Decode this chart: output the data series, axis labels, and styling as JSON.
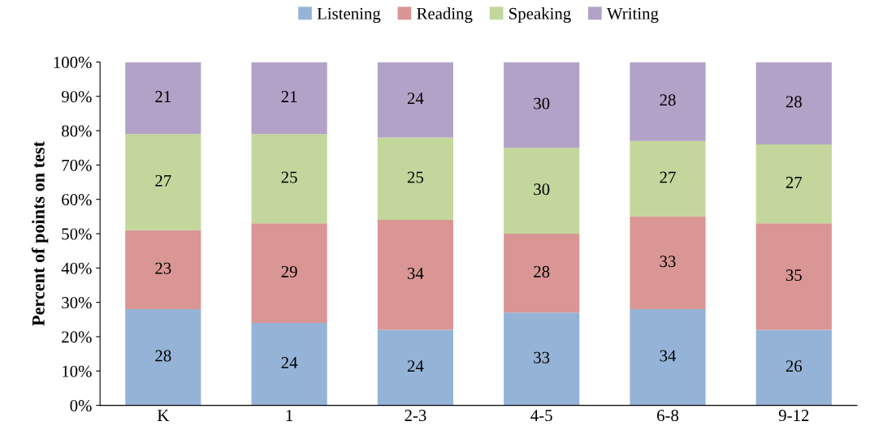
{
  "chart_data": {
    "type": "bar",
    "stacked": true,
    "ylabel": "Percent of points on test",
    "categories": [
      "K",
      "1",
      "2-3",
      "4-5",
      "6-8",
      "9-12"
    ],
    "series": [
      {
        "name": "Listening",
        "color": "#95b3d7",
        "values": [
          28,
          24,
          22,
          27,
          28,
          22
        ]
      },
      {
        "name": "Reading",
        "color": "#d99694",
        "values": [
          23,
          29,
          32,
          23,
          27,
          31
        ]
      },
      {
        "name": "Speaking",
        "color": "#c3d69b",
        "values": [
          28,
          26,
          24,
          25,
          22,
          23
        ]
      },
      {
        "name": "Writing",
        "color": "#b3a2c7",
        "values": [
          21,
          21,
          22,
          25,
          23,
          24
        ]
      }
    ],
    "annotations": [
      "28",
      "23",
      "27",
      "21",
      "24",
      "29",
      "25",
      "21",
      "24",
      "34",
      "25",
      "24",
      "33",
      "28",
      "30",
      "30",
      "34",
      "33",
      "27",
      "28",
      "26",
      "35",
      "27",
      "28"
    ],
    "ylim": [
      0,
      100
    ],
    "yticks": [
      {
        "value": 0,
        "label": "0%"
      },
      {
        "value": 10,
        "label": "10%"
      },
      {
        "value": 20,
        "label": "20%"
      },
      {
        "value": 30,
        "label": "30%"
      },
      {
        "value": 40,
        "label": "40%"
      },
      {
        "value": 50,
        "label": "50%"
      },
      {
        "value": 60,
        "label": "60%"
      },
      {
        "value": 70,
        "label": "70%"
      },
      {
        "value": 80,
        "label": "80%"
      },
      {
        "value": 90,
        "label": "90%"
      },
      {
        "value": 100,
        "label": "100%"
      }
    ],
    "grid": false,
    "legend": "top"
  }
}
